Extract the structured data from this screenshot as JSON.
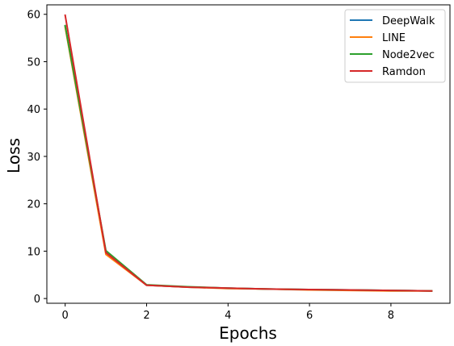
{
  "chart_data": {
    "type": "line",
    "xlabel": "Epochs",
    "ylabel": "Loss",
    "xlim": [
      -0.45,
      9.45
    ],
    "ylim": [
      -1.0,
      62.0
    ],
    "xticks": [
      0,
      2,
      4,
      6,
      8
    ],
    "yticks": [
      0,
      10,
      20,
      30,
      40,
      50,
      60
    ],
    "grid": false,
    "legend_position": "top-right",
    "x": [
      0,
      1,
      2,
      3,
      4,
      5,
      6,
      7,
      8,
      9
    ],
    "series": [
      {
        "name": "DeepWalk",
        "color": "#1f77b4",
        "values": [
          57.5,
          9.8,
          2.8,
          2.4,
          2.2,
          2.0,
          1.9,
          1.8,
          1.7,
          1.6
        ]
      },
      {
        "name": "LINE",
        "color": "#ff7f0e",
        "values": [
          57.3,
          9.3,
          2.8,
          2.4,
          2.1,
          2.0,
          1.8,
          1.7,
          1.6,
          1.6
        ]
      },
      {
        "name": "Node2vec",
        "color": "#2ca02c",
        "values": [
          57.6,
          10.1,
          2.9,
          2.5,
          2.2,
          2.0,
          1.9,
          1.8,
          1.7,
          1.6
        ]
      },
      {
        "name": "Ramdon",
        "color": "#d62728",
        "values": [
          59.8,
          9.7,
          2.8,
          2.4,
          2.2,
          2.0,
          1.9,
          1.8,
          1.7,
          1.6
        ]
      }
    ]
  }
}
